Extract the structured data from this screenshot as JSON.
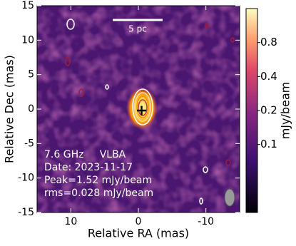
{
  "chart_data": {
    "type": "image",
    "xlabel": "Relative RA (mas)",
    "ylabel": "Relative Dec (mas)",
    "xlim": [
      15,
      -15
    ],
    "ylim": [
      -15,
      15
    ],
    "xticks": [
      10,
      0,
      -10
    ],
    "yticks": [
      -15,
      -10,
      -5,
      0,
      5,
      10,
      15
    ],
    "colorbar": {
      "label": "mJy/beam",
      "scale": "log",
      "lim": [
        0.025,
        1.6
      ],
      "ticks": [
        0.1,
        0.2,
        0.4,
        0.8
      ]
    },
    "annotations": [
      "7.6 GHz     VLBA",
      "Date: 2023-11-17",
      "Peak=1.52 mJy/beam",
      "rms=0.028 mJy/beam"
    ],
    "scale_bar": {
      "label": "5 pc"
    }
  }
}
